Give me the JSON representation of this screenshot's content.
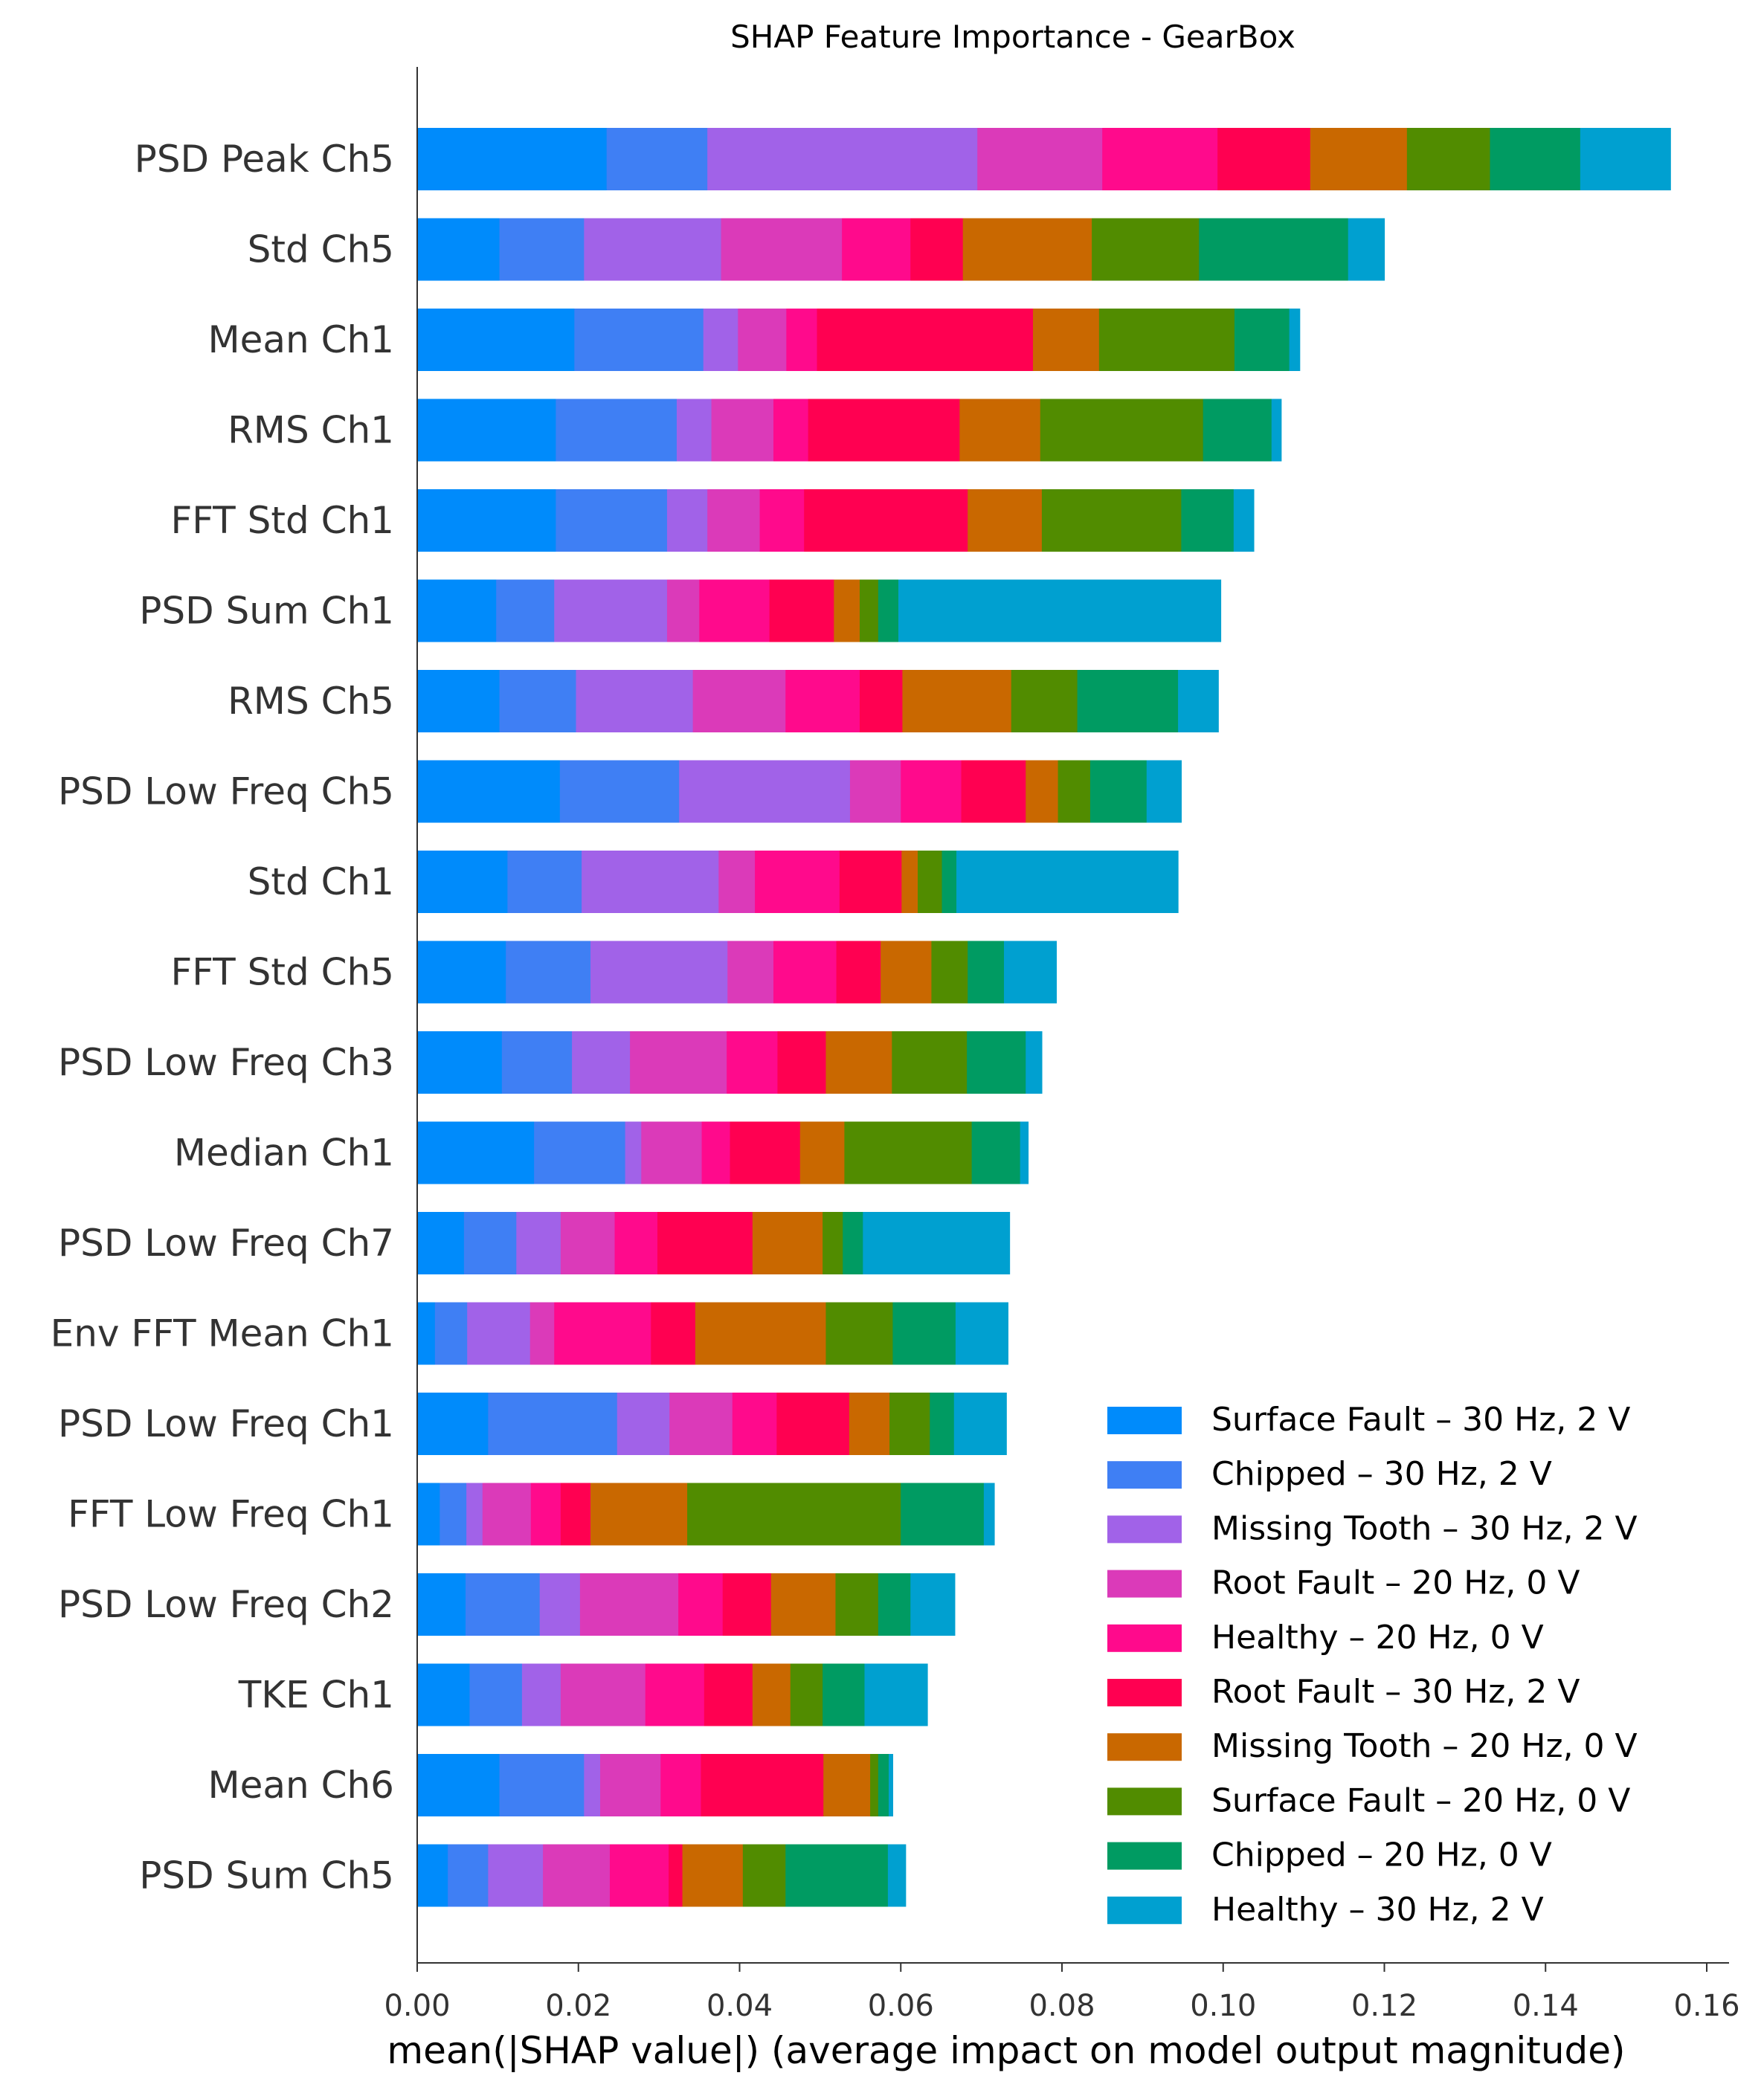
{
  "chart_data": {
    "type": "bar",
    "orientation": "horizontal",
    "stacked": true,
    "title": "SHAP Feature Importance - GearBox",
    "xlabel": "mean(|SHAP value|) (average impact on model output magnitude)",
    "ylabel": "",
    "xlim": [
      0.0,
      0.163
    ],
    "xticks": [
      "0.00",
      "0.02",
      "0.04",
      "0.06",
      "0.08",
      "0.10",
      "0.12",
      "0.14",
      "0.16"
    ],
    "xtick_values": [
      0.0,
      0.02,
      0.04,
      0.06,
      0.08,
      0.1,
      0.12,
      0.14,
      0.16
    ],
    "legend_position": "lower-right",
    "categories": [
      "PSD Peak Ch5",
      "Std Ch5",
      "Mean Ch1",
      "RMS Ch1",
      "FFT Std Ch1",
      "PSD Sum Ch1",
      "RMS Ch5",
      "PSD Low Freq Ch5",
      "Std Ch1",
      "FFT Std Ch5",
      "PSD Low Freq Ch3",
      "Median Ch1",
      "PSD Low Freq Ch7",
      "Env FFT Mean Ch1",
      "PSD Low Freq Ch1",
      "FFT Low Freq Ch1",
      "PSD Low Freq Ch2",
      "TKE Ch1",
      "Mean Ch6",
      "PSD Sum Ch5"
    ],
    "series": [
      {
        "name": "Surface Fault – 30 Hz, 2 V",
        "color": "#008bfb",
        "values": [
          0.0235,
          0.0102,
          0.0195,
          0.0172,
          0.0172,
          0.0098,
          0.0102,
          0.0177,
          0.0112,
          0.011,
          0.0105,
          0.0145,
          0.0058,
          0.0022,
          0.0088,
          0.0028,
          0.006,
          0.0065,
          0.0102,
          0.0038
        ]
      },
      {
        "name": "Chipped – 30 Hz, 2 V",
        "color": "#3f7ff4",
        "values": [
          0.0125,
          0.0105,
          0.016,
          0.015,
          0.0138,
          0.0072,
          0.0095,
          0.0148,
          0.0092,
          0.0105,
          0.0087,
          0.0113,
          0.0065,
          0.004,
          0.016,
          0.0033,
          0.0092,
          0.0065,
          0.0105,
          0.005
        ]
      },
      {
        "name": "Missing Tooth – 30 Hz, 2 V",
        "color": "#a162e8",
        "values": [
          0.0335,
          0.017,
          0.0043,
          0.0043,
          0.005,
          0.014,
          0.0145,
          0.0212,
          0.017,
          0.017,
          0.0072,
          0.002,
          0.0055,
          0.0078,
          0.0065,
          0.002,
          0.005,
          0.0048,
          0.002,
          0.0068
        ]
      },
      {
        "name": "Root Fault – 20 Hz, 0 V",
        "color": "#db3ab9",
        "values": [
          0.0155,
          0.015,
          0.006,
          0.0077,
          0.0065,
          0.004,
          0.0115,
          0.0063,
          0.0045,
          0.0057,
          0.012,
          0.0075,
          0.0067,
          0.003,
          0.0078,
          0.006,
          0.0122,
          0.0105,
          0.0075,
          0.0083
        ]
      },
      {
        "name": "Healthy – 20 Hz, 0 V",
        "color": "#ff0a8c",
        "values": [
          0.0143,
          0.0085,
          0.0038,
          0.0043,
          0.0055,
          0.0087,
          0.0092,
          0.0075,
          0.0105,
          0.0078,
          0.0063,
          0.0035,
          0.0053,
          0.012,
          0.0055,
          0.0037,
          0.0055,
          0.0073,
          0.005,
          0.0073
        ]
      },
      {
        "name": "Root Fault – 30 Hz, 2 V",
        "color": "#ff0051",
        "values": [
          0.0115,
          0.0065,
          0.0268,
          0.0188,
          0.0203,
          0.008,
          0.0053,
          0.008,
          0.0077,
          0.0055,
          0.006,
          0.0087,
          0.0118,
          0.0055,
          0.009,
          0.0037,
          0.006,
          0.006,
          0.0152,
          0.0017
        ]
      },
      {
        "name": "Missing Tooth – 20 Hz, 0 V",
        "color": "#c96800",
        "values": [
          0.012,
          0.016,
          0.0082,
          0.01,
          0.0092,
          0.0032,
          0.0135,
          0.004,
          0.002,
          0.0063,
          0.0082,
          0.0055,
          0.0087,
          0.0162,
          0.005,
          0.012,
          0.008,
          0.0047,
          0.0058,
          0.0075
        ]
      },
      {
        "name": "Surface Fault – 20 Hz, 0 V",
        "color": "#518c00",
        "values": [
          0.0103,
          0.0133,
          0.0168,
          0.0202,
          0.0173,
          0.0023,
          0.0082,
          0.004,
          0.003,
          0.0045,
          0.0093,
          0.0158,
          0.0025,
          0.0083,
          0.005,
          0.0265,
          0.0053,
          0.004,
          0.001,
          0.0053
        ]
      },
      {
        "name": "Chipped – 20 Hz, 0 V",
        "color": "#009b62",
        "values": [
          0.0112,
          0.0185,
          0.0068,
          0.0085,
          0.0065,
          0.0025,
          0.0125,
          0.007,
          0.0018,
          0.0045,
          0.0073,
          0.006,
          0.0025,
          0.0078,
          0.003,
          0.0103,
          0.004,
          0.0052,
          0.0013,
          0.0127
        ]
      },
      {
        "name": "Healthy – 30 Hz, 2 V",
        "color": "#00a0d0",
        "values": [
          0.0112,
          0.0045,
          0.0013,
          0.0012,
          0.0025,
          0.04,
          0.005,
          0.0043,
          0.0275,
          0.0065,
          0.002,
          0.001,
          0.0182,
          0.0065,
          0.0065,
          0.0013,
          0.0055,
          0.0078,
          0.0005,
          0.0022
        ]
      }
    ]
  }
}
